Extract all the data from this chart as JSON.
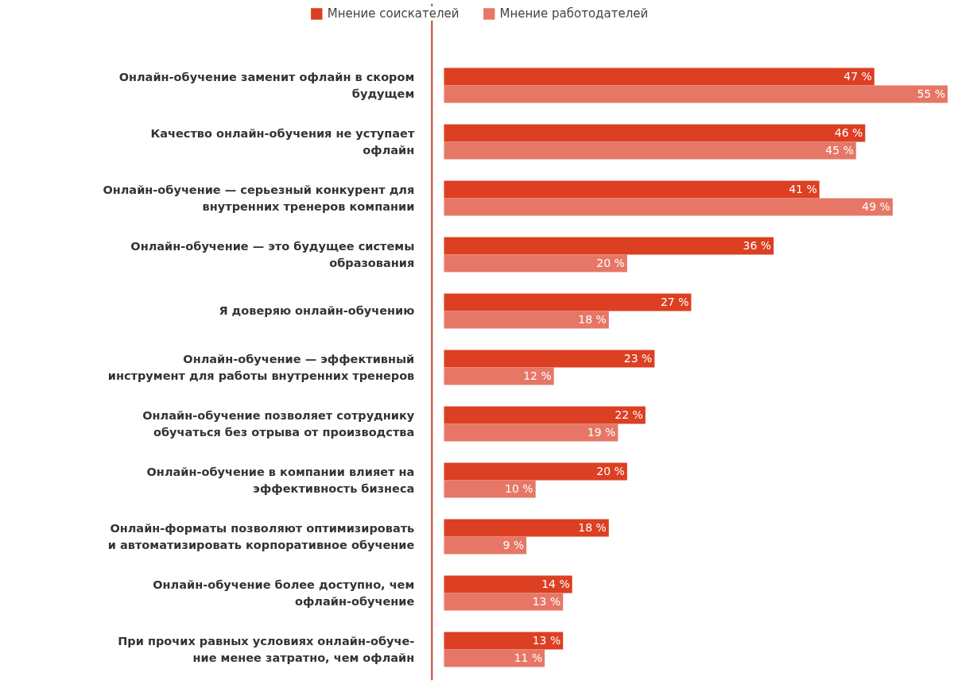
{
  "chart_data": {
    "type": "bar",
    "orientation": "horizontal",
    "legend": "top",
    "grid": false,
    "categories": [
      "Онлайн-обучение заменит офлайн в скором\nбудущем",
      "Качество онлайн-обучения не уступает\nофлайн",
      "Онлайн-обучение — серьезный конкурент для\nвнутренних тренеров компании",
      "Онлайн-обучение — это будущее системы\nобразования",
      "Я доверяю онлайн-обучению",
      "Онлайн-обучение — эффективный\nинструмент для работы внутренних тренеров",
      "Онлайн-обучение позволяет сотруднику\nобучаться без отрыва от производства",
      "Онлайн-обучение в компании влияет на\nэффективность бизнеса",
      "Онлайн-форматы позволяют оптимизировать\nи автоматизировать корпоративное обучение",
      "Онлайн-обучение более доступно, чем\nофлайн-обучение",
      "При прочих равных условиях онлайн-обуче-\nние менее затратно, чем офлайн"
    ],
    "series": [
      {
        "name": "Мнение соискателей",
        "color": "#dc3f22",
        "values": [
          47,
          46,
          41,
          36,
          27,
          23,
          22,
          20,
          18,
          14,
          13
        ],
        "value_labels": [
          "47 %",
          "46 %",
          "41 %",
          "36 %",
          "27 %",
          "23 %",
          "22 %",
          "20 %",
          "18 %",
          "14 %",
          "13 %"
        ]
      },
      {
        "name": "Мнение работодателей",
        "color": "#e67766",
        "values": [
          55,
          45,
          49,
          20,
          18,
          12,
          19,
          10,
          9,
          13,
          11
        ],
        "value_labels": [
          "55 %",
          "45 %",
          "49 %",
          "20 %",
          "18 %",
          "12 %",
          "19 %",
          "10 %",
          "9 %",
          "13 %",
          "11 %"
        ]
      }
    ]
  }
}
